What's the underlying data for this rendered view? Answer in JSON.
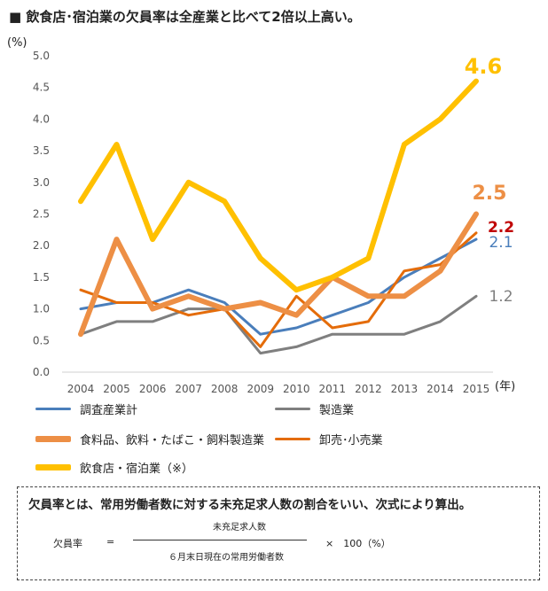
{
  "title": "■ 飲食店･宿泊業の欠員率は全産業と比べて2倍以上高い。",
  "note": {
    "text": "欠員率とは、常用労働者数に対する未充足求人数の割合をいい、次式により算出。",
    "formula_label": "欠員率",
    "equals": "=",
    "numerator": "未充足求人数",
    "denominator": "６月末日現在の常用労働者数",
    "times": "×　100（%）"
  },
  "chart_data": {
    "type": "line",
    "title": "■ 飲食店･宿泊業の欠員率は全産業と比べて2倍以上高い。",
    "y_unit_label": "(%)",
    "x_unit_label": "(年)",
    "x": [
      "2004",
      "2005",
      "2006",
      "2007",
      "2008",
      "2009",
      "2010",
      "2011",
      "2012",
      "2013",
      "2014",
      "2015"
    ],
    "ylim": [
      0,
      5
    ],
    "yticks": [
      "0.0",
      "0.5",
      "1.0",
      "1.5",
      "2.0",
      "2.5",
      "3.0",
      "3.5",
      "4.0",
      "4.5",
      "5.0"
    ],
    "grid": false,
    "legend_position": "bottom",
    "series": [
      {
        "name": "調査産業計",
        "color": "#4a7ebb",
        "width": 3,
        "values": [
          1.0,
          1.1,
          1.1,
          1.3,
          1.1,
          0.6,
          0.7,
          0.9,
          1.1,
          1.5,
          1.8,
          2.1
        ],
        "end_label": "2.1"
      },
      {
        "name": "製造業",
        "color": "#7f7f7f",
        "width": 3,
        "values": [
          0.6,
          0.8,
          0.8,
          1.0,
          1.0,
          0.3,
          0.4,
          0.6,
          0.6,
          0.6,
          0.8,
          1.2
        ],
        "end_label": "1.2"
      },
      {
        "name": "食料品、飲料・たばこ・飼料製造業",
        "color": "#ed8f45",
        "width": 6,
        "values": [
          0.6,
          2.1,
          1.0,
          1.2,
          1.0,
          1.1,
          0.9,
          1.5,
          1.2,
          1.2,
          1.6,
          2.5
        ],
        "end_label": "2.5"
      },
      {
        "name": "卸売･小売業",
        "color": "#e46c0a",
        "width": 3,
        "values": [
          1.3,
          1.1,
          1.1,
          0.9,
          1.0,
          0.4,
          1.2,
          0.7,
          0.8,
          1.6,
          1.7,
          2.2
        ],
        "end_label": "2.2"
      },
      {
        "name": "飲食店・宿泊業（※）",
        "color": "#ffc000",
        "width": 6,
        "values": [
          2.7,
          3.6,
          2.1,
          3.0,
          2.7,
          1.8,
          1.3,
          1.5,
          1.8,
          3.6,
          4.0,
          4.6
        ],
        "end_label": "4.6"
      }
    ],
    "end_label_colors": {
      "2.1": "#4a7ebb",
      "1.2": "#7f7f7f",
      "2.5": "#ed8f45",
      "2.2": "#c00000",
      "4.6": "#ffc000"
    }
  }
}
